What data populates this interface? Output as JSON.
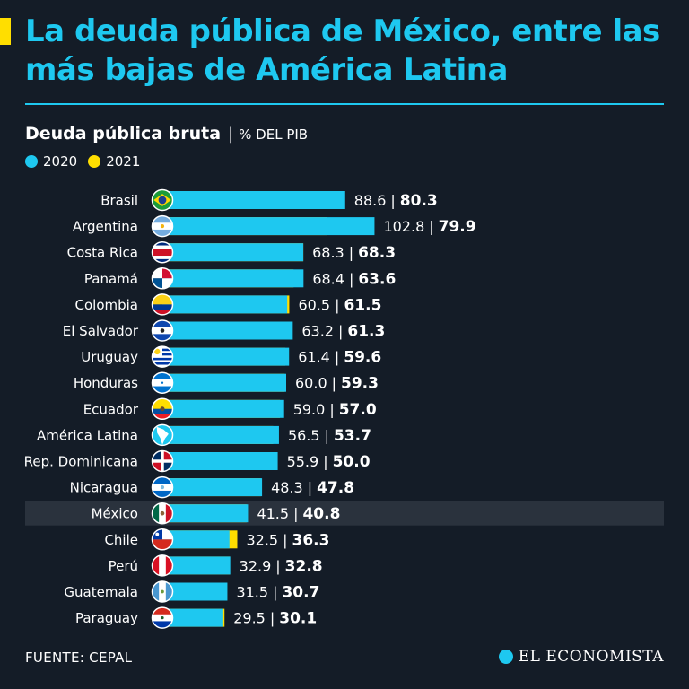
{
  "header": {
    "title": "La deuda pública de México, entre las más bajas de América Latina"
  },
  "subtitle": {
    "main": "Deuda pública bruta",
    "separator": "|",
    "unit": "% DEL PIB"
  },
  "colors": {
    "background": "#141c27",
    "accent": "#1ec8f0",
    "series_2020": "#1ec8f0",
    "series_2021": "#ffde00",
    "highlight_row": "#2a323d"
  },
  "chart_data": {
    "type": "bar",
    "orientation": "horizontal",
    "title": "Deuda pública bruta",
    "unit": "% DEL PIB",
    "legend": [
      "2020",
      "2021"
    ],
    "highlight": "México",
    "categories": [
      "Brasil",
      "Argentina",
      "Costa Rica",
      "Panamá",
      "Colombia",
      "El Salvador",
      "Uruguay",
      "Honduras",
      "Ecuador",
      "América Latina",
      "Rep. Dominicana",
      "Nicaragua",
      "México",
      "Chile",
      "Perú",
      "Guatemala",
      "Paraguay"
    ],
    "series": [
      {
        "name": "2020",
        "values": [
          88.6,
          102.8,
          68.3,
          68.4,
          60.5,
          63.2,
          61.4,
          60.0,
          59.0,
          56.5,
          55.9,
          48.3,
          41.5,
          32.5,
          32.9,
          31.5,
          29.5
        ]
      },
      {
        "name": "2021",
        "values": [
          80.3,
          79.9,
          68.3,
          63.6,
          61.5,
          61.3,
          59.6,
          59.3,
          57.0,
          53.7,
          50.0,
          47.8,
          40.8,
          36.3,
          32.8,
          30.7,
          30.1
        ]
      }
    ],
    "labels_2020": [
      "88.6",
      "102.8",
      "68.3",
      "68.4",
      "60.5",
      "63.2",
      "61.4",
      "60.0",
      "59.0",
      "56.5",
      "55.9",
      "48.3",
      "41.5",
      "32.5",
      "32.9",
      "31.5",
      "29.5"
    ],
    "labels_2021": [
      "80.3",
      "79.9",
      "68.3",
      "63.6",
      "61.5",
      "61.3",
      "59.6",
      "59.3",
      "57.0",
      "53.7",
      "50.0",
      "47.8",
      "40.8",
      "36.3",
      "32.8",
      "30.7",
      "30.1"
    ],
    "flag_icons": [
      "brazil-flag-icon",
      "argentina-flag-icon",
      "costa-rica-flag-icon",
      "panama-flag-icon",
      "colombia-flag-icon",
      "el-salvador-flag-icon",
      "uruguay-flag-icon",
      "honduras-flag-icon",
      "ecuador-flag-icon",
      "america-latina-map-icon",
      "dominican-republic-flag-icon",
      "nicaragua-flag-icon",
      "mexico-flag-icon",
      "chile-flag-icon",
      "peru-flag-icon",
      "guatemala-flag-icon",
      "paraguay-flag-icon"
    ]
  },
  "footer": {
    "source": "FUENTE: CEPAL",
    "brand": "EL ECONOMISTA",
    "brand_icon": "el-economista-logo-icon"
  }
}
